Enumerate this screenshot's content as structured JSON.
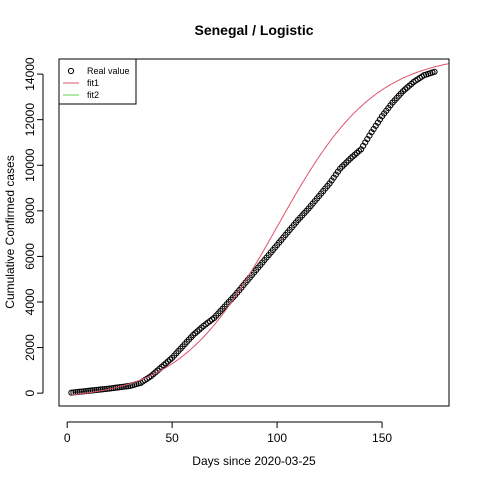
{
  "chart_data": {
    "type": "scatter",
    "title": "Senegal / Logistic",
    "xlabel": "Days since 2020-03-25",
    "ylabel": "Cumulative Confirmed cases",
    "xlim": [
      -3.9,
      181.9
    ],
    "ylim": [
      -564,
      14662
    ],
    "xticks": [
      0,
      50,
      100,
      150
    ],
    "yticks": [
      0,
      2000,
      4000,
      6000,
      8000,
      10000,
      12000,
      14000
    ],
    "legend": {
      "placement": "top-left",
      "box": true
    },
    "series": [
      {
        "name": "Real value",
        "kind": "points",
        "marker": "open-circle",
        "color": "#000000",
        "x_start": 2,
        "x_end": 175,
        "x_step": 1,
        "anchors": [
          [
            2,
            20
          ],
          [
            10,
            100
          ],
          [
            20,
            200
          ],
          [
            30,
            320
          ],
          [
            35,
            450
          ],
          [
            40,
            750
          ],
          [
            45,
            1150
          ],
          [
            50,
            1550
          ],
          [
            55,
            2050
          ],
          [
            60,
            2550
          ],
          [
            65,
            2950
          ],
          [
            70,
            3300
          ],
          [
            75,
            3800
          ],
          [
            80,
            4300
          ],
          [
            85,
            4850
          ],
          [
            90,
            5400
          ],
          [
            95,
            5950
          ],
          [
            100,
            6500
          ],
          [
            105,
            7050
          ],
          [
            110,
            7600
          ],
          [
            115,
            8100
          ],
          [
            120,
            8650
          ],
          [
            125,
            9200
          ],
          [
            130,
            9850
          ],
          [
            135,
            10300
          ],
          [
            140,
            10700
          ],
          [
            145,
            11450
          ],
          [
            150,
            12150
          ],
          [
            155,
            12750
          ],
          [
            160,
            13250
          ],
          [
            165,
            13650
          ],
          [
            170,
            13950
          ],
          [
            175,
            14100
          ]
        ]
      },
      {
        "name": "fit1",
        "kind": "line",
        "color": "#df536b",
        "logistic": {
          "K": 15200,
          "r": 0.0429,
          "t0": 100,
          "b": -300
        },
        "x_range": [
          2,
          182
        ]
      },
      {
        "name": "fit2",
        "kind": "line",
        "color": "#61d04f",
        "hidden_in_plot": true
      }
    ]
  }
}
